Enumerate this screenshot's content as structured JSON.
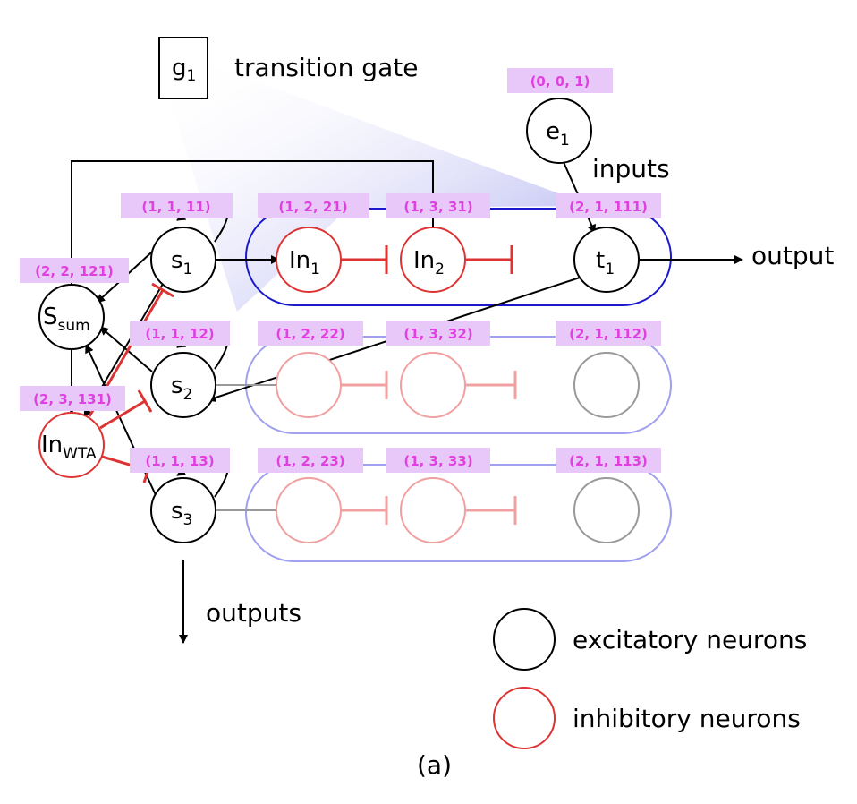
{
  "gate": {
    "symbol": "g",
    "sub": "1",
    "label": "transition gate"
  },
  "labels": {
    "inputs": "inputs",
    "output": "output",
    "outputs": "outputs",
    "caption": "(a)"
  },
  "neurons": {
    "e1": {
      "base": "e",
      "sub": "1"
    },
    "s1": {
      "base": "s",
      "sub": "1"
    },
    "s2": {
      "base": "s",
      "sub": "2"
    },
    "s3": {
      "base": "s",
      "sub": "3"
    },
    "ssum": {
      "base": "S",
      "sub": "sum"
    },
    "inwta": {
      "base": "In",
      "sub": "WTA"
    },
    "in1": {
      "base": "In",
      "sub": "1"
    },
    "in2": {
      "base": "In",
      "sub": "2"
    },
    "t1": {
      "base": "t",
      "sub": "1"
    }
  },
  "tags": {
    "e1": "(0, 0, 1)",
    "s1": "(1, 1, 11)",
    "in1": "(1, 2, 21)",
    "in2": "(1, 3, 31)",
    "t1": "(2, 1, 111)",
    "ssum": "(2, 2, 121)",
    "s2": "(1, 1, 12)",
    "r2a": "(1, 2, 22)",
    "r2b": "(1, 3, 32)",
    "r2c": "(2, 1, 112)",
    "inwta": "(2, 3, 131)",
    "s3": "(1, 1, 13)",
    "r3a": "(1, 2, 23)",
    "r3b": "(1, 3, 33)",
    "r3c": "(2, 1, 113)"
  },
  "legend": {
    "excitatory": "excitatory neurons",
    "inhibitory": "inhibitory neurons"
  },
  "colors": {
    "excitatory": "#000000",
    "inhibitory": "#dd3333",
    "inhibitory_faded": "#f0a0a0",
    "neuron_faded": "#999999",
    "group_active": "#1a1acc",
    "group_faded": "#a0a0ee",
    "tag_text": "#e040e0",
    "tag_bg": "#e8c8f8"
  }
}
